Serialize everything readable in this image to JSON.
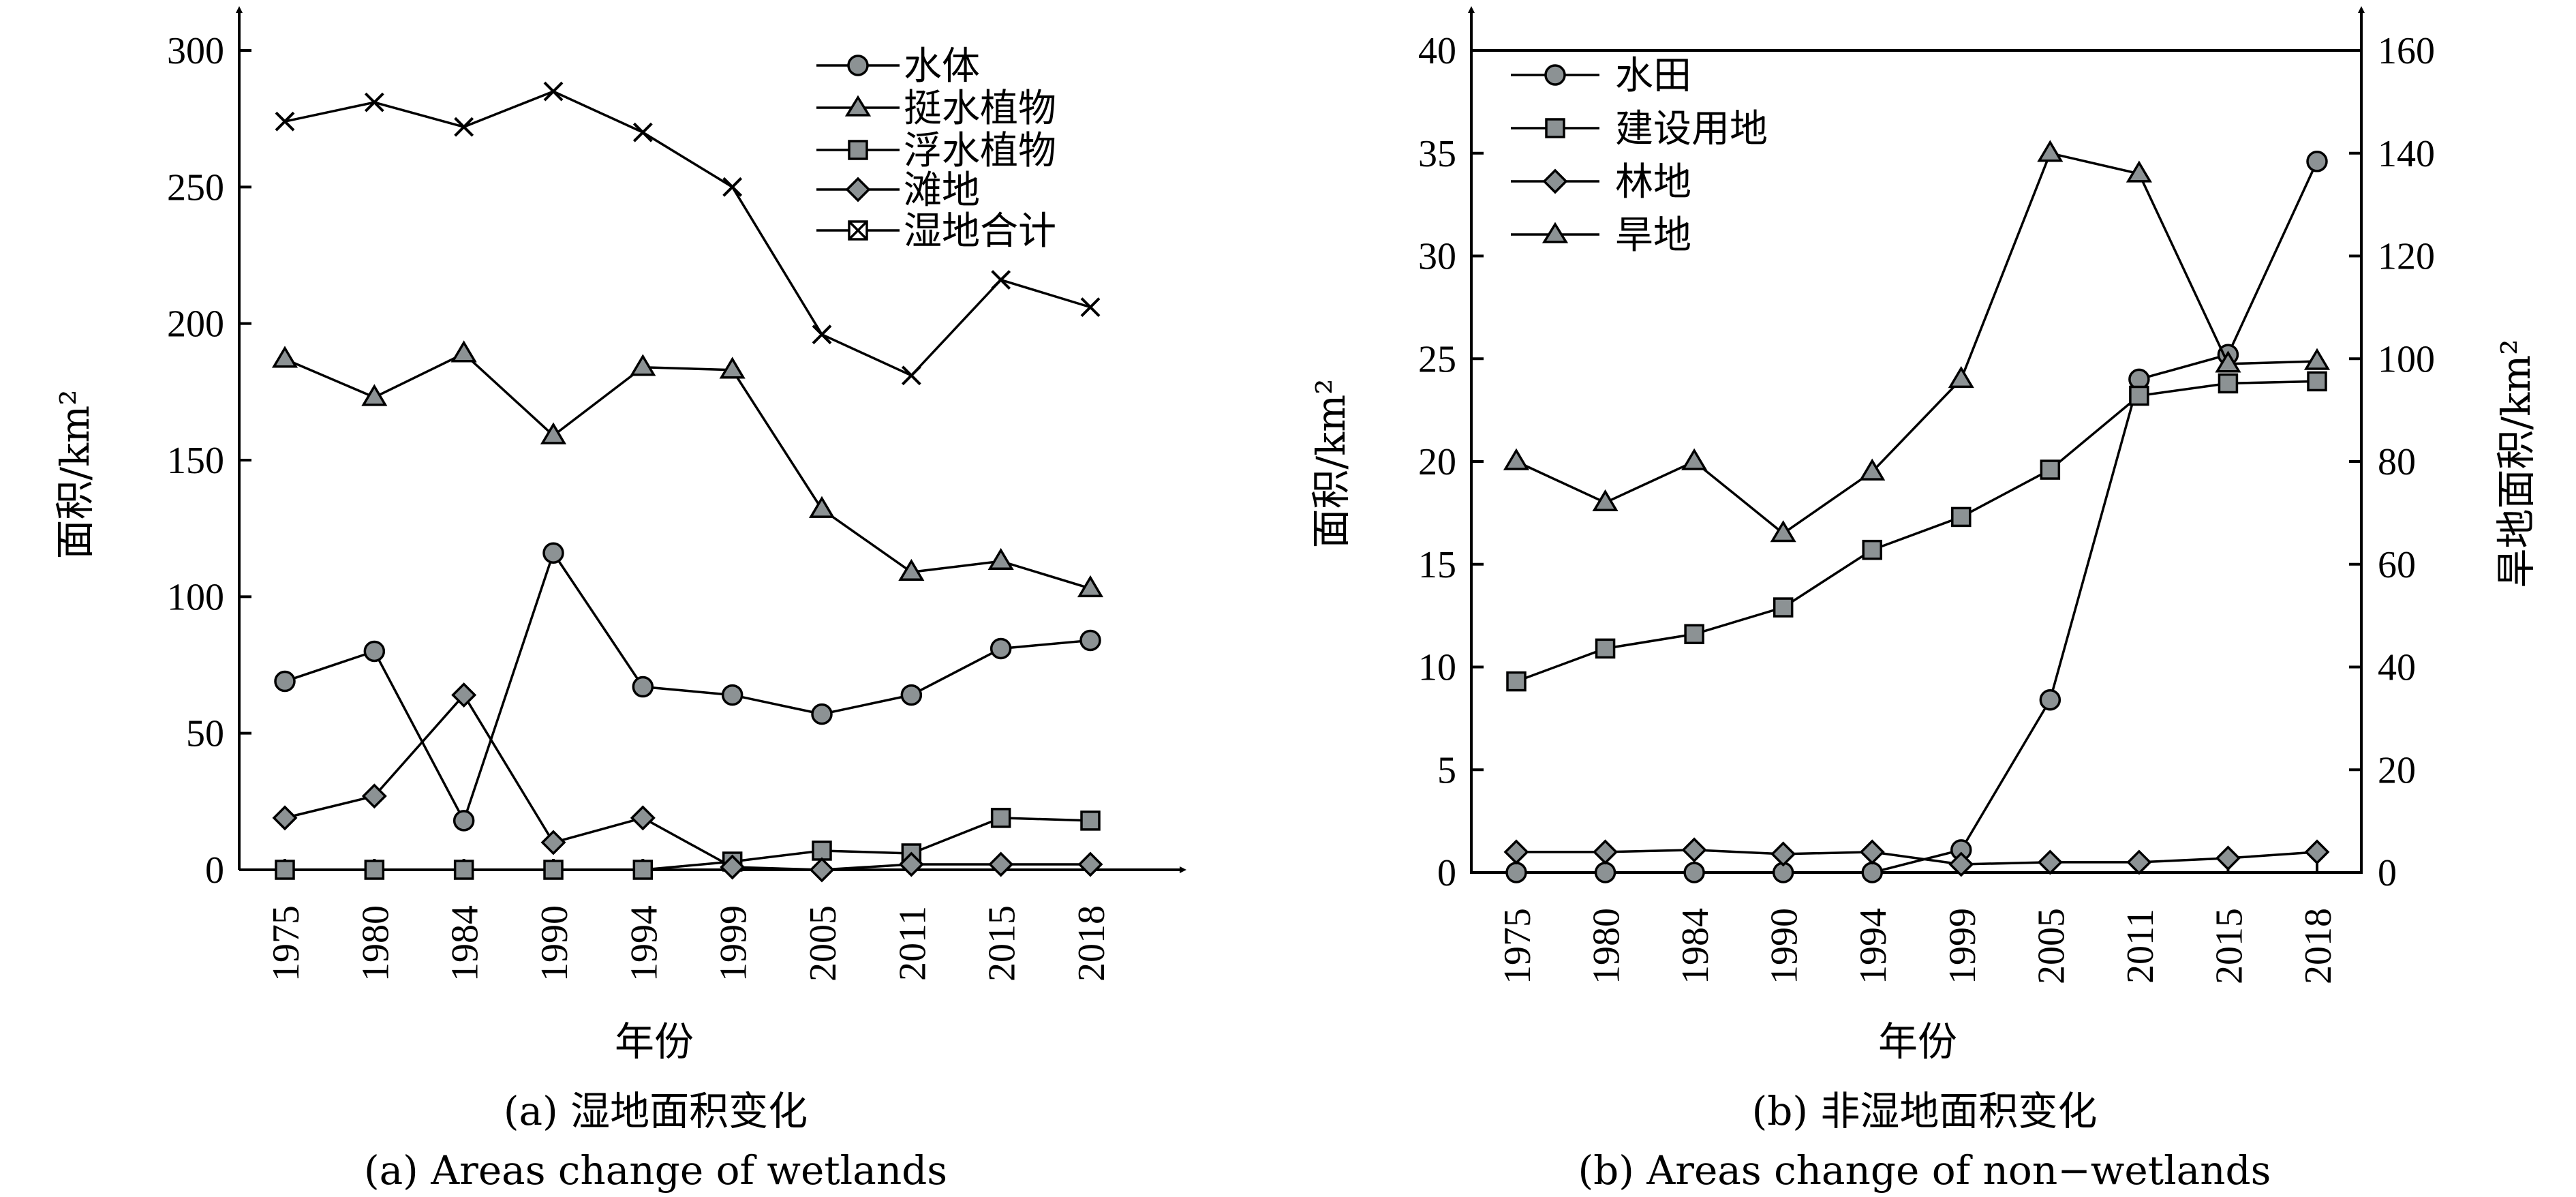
{
  "chart_data": [
    {
      "type": "line",
      "title": "(a) 湿地面积变化",
      "caption_cn": "(a) 湿地面积变化",
      "caption_en": "(a) Areas change of wetlands",
      "xlabel": "年份",
      "ylabel": "面积/km²",
      "ylim": [
        0,
        300
      ],
      "yticks": [
        0,
        50,
        100,
        150,
        200,
        250,
        300
      ],
      "categories": [
        "1975",
        "1980",
        "1984",
        "1990",
        "1994",
        "1999",
        "2005",
        "2011",
        "2015",
        "2018"
      ],
      "series": [
        {
          "name": "水体",
          "marker": "circle",
          "values": [
            69,
            80,
            18,
            116,
            67,
            64,
            57,
            64,
            81,
            84
          ]
        },
        {
          "name": "挺水植物",
          "marker": "triangle",
          "values": [
            187,
            173,
            189,
            159,
            184,
            183,
            132,
            109,
            113,
            103
          ]
        },
        {
          "name": "浮水植物",
          "marker": "square",
          "values": [
            0,
            0,
            0,
            0,
            0,
            3,
            7,
            6,
            19,
            18
          ]
        },
        {
          "name": "滩地",
          "marker": "diamond",
          "values": [
            19,
            27,
            64,
            10,
            19,
            1,
            0,
            2,
            2,
            2
          ]
        },
        {
          "name": "湿地合计",
          "marker": "x",
          "values": [
            274,
            281,
            272,
            285,
            270,
            250,
            196,
            181,
            216,
            206
          ]
        }
      ],
      "legend_position": "top-right"
    },
    {
      "type": "line",
      "title": "(b) 非湿地面积变化",
      "caption_cn": "(b) 非湿地面积变化",
      "caption_en": "(b) Areas change of non−wetlands",
      "xlabel": "年份",
      "ylabel": "面积/km²",
      "ylabel_right": "旱地面积/km²",
      "ylim": [
        0,
        40
      ],
      "yticks": [
        0,
        5,
        10,
        15,
        20,
        25,
        30,
        35,
        40
      ],
      "ylim_right": [
        0,
        160
      ],
      "yticks_right": [
        0,
        20,
        40,
        60,
        80,
        100,
        120,
        140,
        160
      ],
      "categories": [
        "1975",
        "1980",
        "1984",
        "1990",
        "1994",
        "1999",
        "2005",
        "2011",
        "2015",
        "2018"
      ],
      "series": [
        {
          "name": "水田",
          "marker": "circle",
          "axis": "left",
          "values": [
            0,
            0,
            0,
            0,
            0,
            1.1,
            8.4,
            24,
            25.2,
            34.6
          ]
        },
        {
          "name": "建设用地",
          "marker": "square",
          "axis": "left",
          "values": [
            9.3,
            10.9,
            11.6,
            12.9,
            15.7,
            17.3,
            19.6,
            23.2,
            23.8,
            23.9
          ]
        },
        {
          "name": "林地",
          "marker": "diamond",
          "axis": "left",
          "values": [
            1,
            1,
            1.1,
            0.9,
            1,
            0.4,
            0.5,
            0.5,
            0.7,
            1
          ]
        },
        {
          "name": "旱地",
          "marker": "triangle",
          "axis": "right",
          "values": [
            80,
            72,
            80,
            66,
            78,
            96,
            140,
            136,
            99,
            99.5
          ]
        }
      ],
      "legend_position": "top-left"
    }
  ]
}
